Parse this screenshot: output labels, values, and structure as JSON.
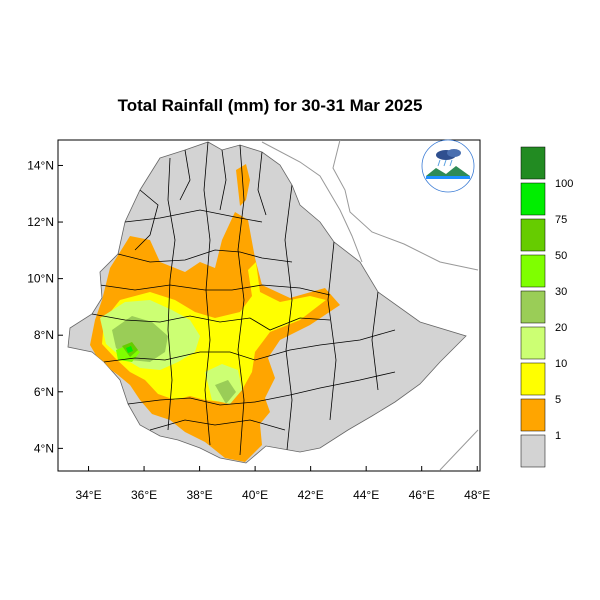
{
  "title": "Total Rainfall (mm) for 30-31 Mar 2025",
  "colors": {
    "land": "#d3d3d3",
    "frame": "#000000",
    "neighbor_border": "#999999"
  },
  "axes": {
    "y_ticks": [
      {
        "value": 14,
        "label": "14°N"
      },
      {
        "value": 12,
        "label": "12°N"
      },
      {
        "value": 10,
        "label": "10°N"
      },
      {
        "value": 8,
        "label": "8°N"
      },
      {
        "value": 6,
        "label": "6°N"
      },
      {
        "value": 4,
        "label": "4°N"
      }
    ],
    "x_ticks": [
      {
        "value": 34,
        "label": "34°E"
      },
      {
        "value": 36,
        "label": "36°E"
      },
      {
        "value": 38,
        "label": "38°E"
      },
      {
        "value": 40,
        "label": "40°E"
      },
      {
        "value": 42,
        "label": "42°E"
      },
      {
        "value": 44,
        "label": "44°E"
      },
      {
        "value": 46,
        "label": "46°E"
      },
      {
        "value": 48,
        "label": "48°E"
      }
    ],
    "lon_range": [
      32.9,
      48.1
    ],
    "lat_range": [
      3.2,
      14.9
    ]
  },
  "legend": {
    "bins": [
      {
        "color": "#d3d3d3",
        "label": "1"
      },
      {
        "color": "#ffa500",
        "label": "5"
      },
      {
        "color": "#ffff00",
        "label": "10"
      },
      {
        "color": "#ccff73",
        "label": "20"
      },
      {
        "color": "#9acd57",
        "label": "30"
      },
      {
        "color": "#7fff00",
        "label": "50"
      },
      {
        "color": "#66cc00",
        "label": "75"
      },
      {
        "color": "#00ee00",
        "label": "100"
      },
      {
        "color": "#228b22",
        "label": ""
      }
    ]
  },
  "logo": {
    "icon": "ethiopian-meteorology-institute-logo"
  }
}
